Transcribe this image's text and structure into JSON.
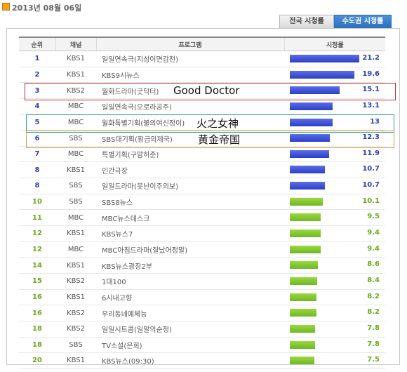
{
  "date": "2013년 08월 06일",
  "tabs": [
    {
      "label": "전국 시청률",
      "active": false
    },
    {
      "label": "수도권 시청률",
      "active": true
    }
  ],
  "columns": [
    "순위",
    "채널",
    "프로그램",
    "시청률"
  ],
  "scale_max": 21.2,
  "rows": [
    {
      "rank": "1",
      "channel": "KBS1",
      "program": "일일연속극(지성이면감천)",
      "rating": "21.2",
      "value": 21.2,
      "color": "blue"
    },
    {
      "rank": "2",
      "channel": "KBS1",
      "program": "KBS9시뉴스",
      "rating": "19.6",
      "value": 19.6,
      "color": "blue"
    },
    {
      "rank": "3",
      "channel": "KBS2",
      "program": "월화드라마(굿닥터)",
      "rating": "15.1",
      "value": 15.1,
      "color": "blue"
    },
    {
      "rank": "4",
      "channel": "MBC",
      "program": "일일연속극(오로라공주)",
      "rating": "13.1",
      "value": 13.1,
      "color": "blue"
    },
    {
      "rank": "5",
      "channel": "MBC",
      "program": "월화특별기획(불의여신정이)",
      "rating": "13",
      "value": 13.0,
      "color": "blue"
    },
    {
      "rank": "6",
      "channel": "SBS",
      "program": "SBS대기획(황금의제국)",
      "rating": "12.3",
      "value": 12.3,
      "color": "blue"
    },
    {
      "rank": "7",
      "channel": "MBC",
      "program": "특별기획(구암허준)",
      "rating": "11.9",
      "value": 11.9,
      "color": "blue"
    },
    {
      "rank": "8",
      "channel": "KBS1",
      "program": "인간극장",
      "rating": "10.7",
      "value": 10.7,
      "color": "blue"
    },
    {
      "rank": "8",
      "channel": "SBS",
      "program": "일일드라마(못난이주의보)",
      "rating": "10.7",
      "value": 10.7,
      "color": "blue"
    },
    {
      "rank": "10",
      "channel": "SBS",
      "program": "SBS8뉴스",
      "rating": "10.1",
      "value": 10.1,
      "color": "green"
    },
    {
      "rank": "11",
      "channel": "MBC",
      "program": "MBC뉴스데스크",
      "rating": "9.5",
      "value": 9.5,
      "color": "green"
    },
    {
      "rank": "12",
      "channel": "KBS1",
      "program": "KBS뉴스7",
      "rating": "9.4",
      "value": 9.4,
      "color": "green"
    },
    {
      "rank": "12",
      "channel": "MBC",
      "program": "MBC아침드라마(잘났어정말)",
      "rating": "9.4",
      "value": 9.4,
      "color": "green"
    },
    {
      "rank": "14",
      "channel": "KBS1",
      "program": "KBS뉴스광장2부",
      "rating": "8.6",
      "value": 8.6,
      "color": "green"
    },
    {
      "rank": "15",
      "channel": "KBS2",
      "program": "1대100",
      "rating": "8.4",
      "value": 8.4,
      "color": "green"
    },
    {
      "rank": "16",
      "channel": "KBS1",
      "program": "6시내고향",
      "rating": "8.2",
      "value": 8.2,
      "color": "green"
    },
    {
      "rank": "16",
      "channel": "KBS2",
      "program": "우리동네예체능",
      "rating": "8.2",
      "value": 8.2,
      "color": "green"
    },
    {
      "rank": "18",
      "channel": "KBS2",
      "program": "일일시트콤(일말의순정)",
      "rating": "7.8",
      "value": 7.8,
      "color": "green"
    },
    {
      "rank": "18",
      "channel": "SBS",
      "program": "TV소설(은희)",
      "rating": "7.8",
      "value": 7.8,
      "color": "green"
    },
    {
      "rank": "20",
      "channel": "KBS1",
      "program": "KBS뉴스(09:30)",
      "rating": "7.5",
      "value": 7.5,
      "color": "green"
    }
  ],
  "annotations": [
    {
      "text": "Good Doctor",
      "row": 2,
      "color": "#c03030"
    },
    {
      "text": "火之女神",
      "row": 4,
      "color": "#2aa0a0"
    },
    {
      "text": "黄金帝国",
      "row": 5,
      "color": "#d89a40"
    }
  ]
}
